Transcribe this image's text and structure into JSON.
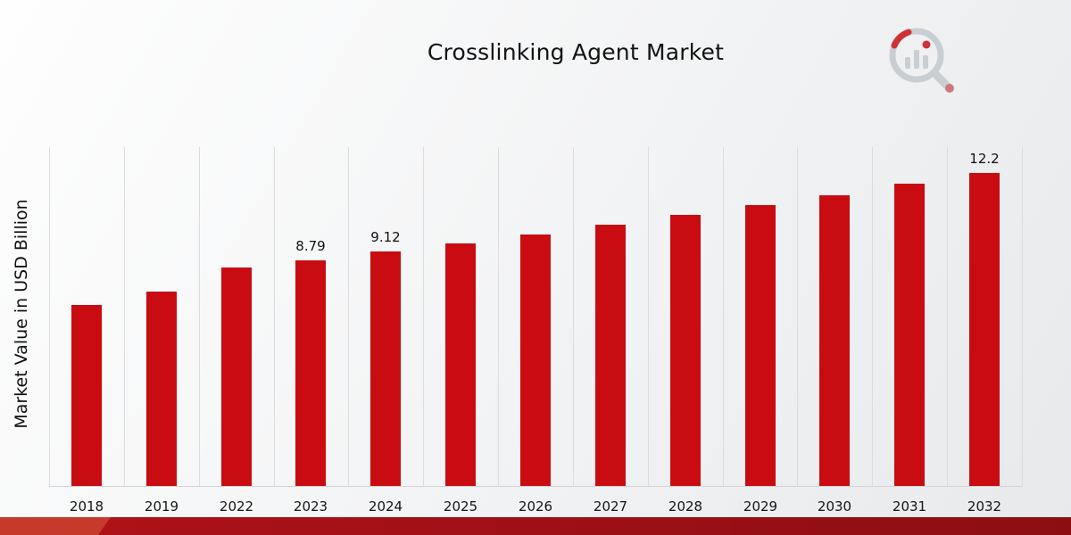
{
  "chart_data": {
    "type": "bar",
    "title": "Crosslinking Agent Market",
    "ylabel": "Market Value in USD Billion",
    "categories": [
      "2018",
      "2019",
      "2022",
      "2023",
      "2024",
      "2025",
      "2026",
      "2027",
      "2028",
      "2029",
      "2030",
      "2031",
      "2032"
    ],
    "values": [
      7.05,
      7.58,
      8.52,
      8.79,
      9.12,
      9.46,
      9.81,
      10.17,
      10.55,
      10.94,
      11.34,
      11.76,
      12.2
    ],
    "data_labels": {
      "2023": "8.79",
      "2024": "9.12",
      "2032": "12.2"
    },
    "bar_color": "#c90c11",
    "ylim": [
      0,
      13.2
    ],
    "grid": "vertical",
    "gridline_color": "#dcdcdc",
    "legend": "none"
  },
  "footer": {
    "band_start": "#b01218",
    "band_end": "#8c0e13",
    "accent": "#c63a2c"
  },
  "logo": {
    "name": "market-research-chart-logo",
    "gray": "#c9ced3",
    "accent": "#cf3036"
  }
}
